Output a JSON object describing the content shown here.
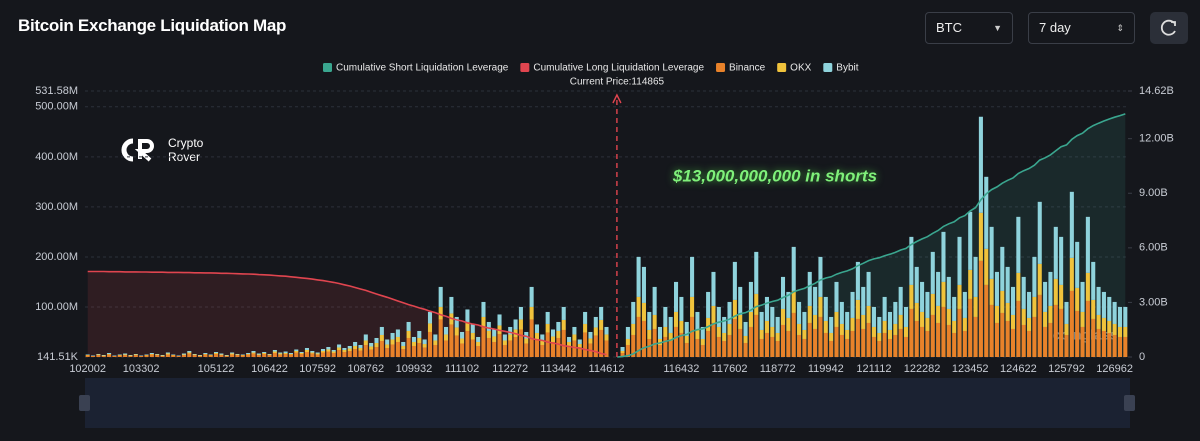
{
  "header": {
    "title": "Bitcoin Exchange Liquidation Map",
    "selectors": [
      "BTC",
      "7 day"
    ]
  },
  "logo": [
    "Crypto",
    "Rover"
  ],
  "watermark": "coinglass",
  "chart_data": {
    "type": "bar",
    "stacked": true,
    "annotation": "$13,000,000,000 in shorts",
    "current_price": {
      "value": 114865,
      "label": "Current Price:114865"
    },
    "ylim": [
      0.14151,
      531.58
    ],
    "yticks": [
      {
        "value": 0.14151,
        "label": "141.51K"
      },
      {
        "value": 100,
        "label": "100.00M"
      },
      {
        "value": 200,
        "label": "200.00M"
      },
      {
        "value": 300,
        "label": "300.00M"
      },
      {
        "value": 400,
        "label": "400.00M"
      },
      {
        "value": 500,
        "label": "500.00M"
      },
      {
        "value": 531.58,
        "label": "531.58M"
      }
    ],
    "y2lim": [
      0,
      14.62
    ],
    "y2ticks": [
      0,
      {
        "value": 3,
        "label": "3.00B"
      },
      {
        "value": 6,
        "label": "6.00B"
      },
      {
        "value": 9,
        "label": "9.00B"
      },
      {
        "value": 12,
        "label": "12.00B"
      },
      {
        "value": 14.62,
        "label": "14.62B"
      }
    ],
    "grid": true,
    "categories": [
      "102002",
      null,
      null,
      null,
      null,
      null,
      null,
      null,
      null,
      null,
      "103302",
      null,
      null,
      null,
      null,
      null,
      null,
      null,
      null,
      null,
      null,
      null,
      null,
      null,
      "105122",
      null,
      null,
      null,
      null,
      null,
      null,
      null,
      null,
      null,
      "106422",
      null,
      null,
      null,
      null,
      null,
      null,
      null,
      null,
      "107592",
      null,
      null,
      null,
      null,
      null,
      null,
      null,
      null,
      "108762",
      null,
      null,
      null,
      null,
      null,
      null,
      null,
      null,
      "109932",
      null,
      null,
      null,
      null,
      null,
      null,
      null,
      null,
      "111102",
      null,
      null,
      null,
      null,
      null,
      null,
      null,
      null,
      "112272",
      null,
      null,
      null,
      null,
      null,
      null,
      null,
      null,
      "113442",
      null,
      null,
      null,
      null,
      null,
      null,
      null,
      null,
      "114612",
      null,
      null,
      null,
      null,
      null,
      null,
      null,
      null,
      null,
      null,
      null,
      null,
      null,
      "116432",
      null,
      null,
      null,
      null,
      null,
      null,
      null,
      null,
      "117602",
      null,
      null,
      null,
      null,
      null,
      null,
      null,
      null,
      "118772",
      null,
      null,
      null,
      null,
      null,
      null,
      null,
      null,
      "119942",
      null,
      null,
      null,
      null,
      null,
      null,
      null,
      null,
      "121112",
      null,
      null,
      null,
      null,
      null,
      null,
      null,
      null,
      "122282",
      null,
      null,
      null,
      null,
      null,
      null,
      null,
      null,
      "123452",
      null,
      null,
      null,
      null,
      null,
      null,
      null,
      null,
      "124622",
      null,
      null,
      null,
      null,
      null,
      null,
      null,
      null,
      "125792",
      null,
      null,
      null,
      null,
      null,
      null,
      null,
      null,
      "126962",
      null,
      null
    ],
    "series": [
      {
        "name": "Cumulative Short Liquidation Leverage",
        "color": "#3aa68f",
        "type": "line",
        "axis": "y2",
        "values": [
          null,
          null,
          null,
          null,
          null,
          null,
          null,
          null,
          null,
          null,
          null,
          null,
          null,
          null,
          null,
          null,
          null,
          null,
          null,
          null,
          null,
          null,
          null,
          null,
          null,
          null,
          null,
          null,
          null,
          null,
          null,
          null,
          null,
          null,
          null,
          null,
          null,
          null,
          null,
          null,
          null,
          null,
          null,
          null,
          null,
          null,
          null,
          null,
          null,
          null,
          null,
          null,
          null,
          null,
          null,
          null,
          null,
          null,
          null,
          null,
          null,
          null,
          null,
          null,
          null,
          null,
          null,
          null,
          null,
          null,
          null,
          null,
          null,
          null,
          null,
          null,
          null,
          null,
          null,
          null,
          null,
          null,
          null,
          null,
          null,
          null,
          null,
          null,
          null,
          null,
          null,
          null,
          null,
          null,
          null,
          null,
          null,
          null,
          null,
          0.0,
          0.02,
          0.07,
          0.17,
          0.35,
          0.51,
          0.59,
          0.72,
          0.77,
          0.86,
          0.93,
          1.07,
          1.18,
          1.24,
          1.42,
          1.5,
          1.55,
          1.67,
          1.82,
          1.91,
          1.98,
          2.08,
          2.25,
          2.38,
          2.44,
          2.58,
          2.77,
          2.85,
          2.96,
          3.05,
          3.12,
          3.27,
          3.39,
          3.59,
          3.69,
          3.77,
          3.92,
          4.05,
          4.23,
          4.34,
          4.41,
          4.55,
          4.65,
          4.73,
          4.85,
          5.02,
          5.15,
          5.3,
          5.39,
          5.46,
          5.57,
          5.65,
          5.75,
          5.88,
          5.97,
          6.19,
          6.35,
          6.49,
          6.61,
          6.8,
          6.95,
          7.18,
          7.32,
          7.43,
          7.65,
          7.77,
          8.03,
          8.21,
          8.64,
          8.97,
          9.2,
          9.35,
          9.55,
          9.71,
          9.84,
          10.09,
          10.24,
          10.36,
          10.54,
          10.82,
          10.95,
          11.11,
          11.34,
          11.56,
          11.66,
          11.96,
          12.17,
          12.3,
          12.55,
          12.72,
          12.85,
          12.97,
          13.08,
          13.18,
          13.27,
          13.36
        ]
      },
      {
        "name": "Cumulative Long Liquidation Leverage",
        "color": "#e0454f",
        "type": "line",
        "axis": "y2",
        "values": [
          4.7,
          4.7,
          4.7,
          4.7,
          4.69,
          4.69,
          4.69,
          4.68,
          4.68,
          4.68,
          4.67,
          4.67,
          4.66,
          4.66,
          4.66,
          4.65,
          4.65,
          4.65,
          4.64,
          4.64,
          4.63,
          4.63,
          4.62,
          4.62,
          4.61,
          4.6,
          4.6,
          4.59,
          4.58,
          4.57,
          4.56,
          4.55,
          4.53,
          4.52,
          4.5,
          4.48,
          4.46,
          4.44,
          4.41,
          4.38,
          4.35,
          4.32,
          4.28,
          4.24,
          4.2,
          4.15,
          4.1,
          4.04,
          3.97,
          3.9,
          3.82,
          3.74,
          3.66,
          3.56,
          3.46,
          3.37,
          3.28,
          3.18,
          3.08,
          2.98,
          2.88,
          2.8,
          2.7,
          2.62,
          2.52,
          2.44,
          2.32,
          2.24,
          2.12,
          2.04,
          1.98,
          1.88,
          1.81,
          1.76,
          1.66,
          1.59,
          1.54,
          1.46,
          1.41,
          1.35,
          1.28,
          1.19,
          1.14,
          1.01,
          0.95,
          0.91,
          0.82,
          0.77,
          0.71,
          0.62,
          0.58,
          0.52,
          0.49,
          0.41,
          0.36,
          0.29,
          0.19,
          0.13,
          null,
          null,
          null,
          null,
          null,
          null,
          null,
          null,
          null,
          null,
          null,
          null,
          null,
          null,
          null,
          null,
          null,
          null,
          null,
          null,
          null,
          null,
          null,
          null,
          null,
          null,
          null,
          null,
          null,
          null,
          null,
          null,
          null,
          null,
          null,
          null,
          null,
          null,
          null,
          null,
          null,
          null,
          null,
          null,
          null,
          null,
          null,
          null,
          null,
          null,
          null,
          null,
          null,
          null,
          null,
          null,
          null,
          null,
          null,
          null,
          null,
          null,
          null,
          null,
          null,
          null,
          null,
          null,
          null,
          null,
          null,
          null,
          null,
          null,
          null,
          null,
          null,
          null,
          null,
          null,
          null,
          null,
          null,
          null,
          null,
          null,
          null,
          null,
          null,
          null,
          null,
          null,
          null,
          null,
          null,
          null,
          null
        ]
      },
      {
        "name": "Binance",
        "color": "#e8822a",
        "type": "bar",
        "values": [
          3,
          2,
          4,
          2,
          5,
          2,
          3,
          4,
          2,
          4,
          2,
          3,
          5,
          4,
          2,
          5,
          3,
          2,
          4,
          7,
          4,
          2,
          5,
          3,
          6,
          4,
          2,
          5,
          4,
          3,
          5,
          7,
          4,
          6,
          4,
          8,
          5,
          6,
          5,
          9,
          6,
          10,
          7,
          5,
          9,
          11,
          8,
          14,
          10,
          12,
          16,
          13,
          24,
          15,
          20,
          32,
          18,
          25,
          30,
          16,
          38,
          22,
          28,
          19,
          50,
          24,
          75,
          33,
          65,
          43,
          27,
          52,
          35,
          22,
          60,
          38,
          30,
          46,
          24,
          33,
          40,
          55,
          27,
          75,
          35,
          24,
          49,
          30,
          38,
          54,
          22,
          33,
          19,
          49,
          27,
          43,
          54,
          33,
          0,
          0,
          8,
          24,
          44,
          80,
          72,
          36,
          56,
          24,
          40,
          32,
          60,
          48,
          28,
          80,
          36,
          24,
          52,
          68,
          40,
          32,
          44,
          76,
          56,
          28,
          60,
          84,
          36,
          48,
          40,
          32,
          64,
          52,
          88,
          44,
          36,
          68,
          56,
          80,
          48,
          32,
          60,
          44,
          36,
          52,
          76,
          56,
          68,
          40,
          32,
          48,
          36,
          44,
          56,
          40,
          96,
          72,
          60,
          52,
          84,
          68,
          100,
          64,
          48,
          96,
          52,
          116,
          80,
          192,
          144,
          104,
          68,
          88,
          72,
          56,
          112,
          64,
          52,
          80,
          124,
          60,
          68,
          104,
          96,
          44,
          132,
          92,
          60,
          112,
          76,
          56,
          52,
          48,
          44,
          40,
          40
        ]
      },
      {
        "name": "OKX",
        "color": "#f0c33c",
        "type": "bar",
        "values": [
          1,
          0,
          1,
          1,
          1,
          0,
          1,
          1,
          1,
          1,
          0,
          1,
          1,
          1,
          1,
          2,
          1,
          0,
          1,
          2,
          1,
          1,
          1,
          1,
          2,
          1,
          1,
          2,
          1,
          1,
          1,
          2,
          1,
          2,
          1,
          3,
          2,
          2,
          1,
          3,
          2,
          4,
          2,
          2,
          3,
          4,
          3,
          5,
          4,
          5,
          6,
          5,
          9,
          6,
          8,
          12,
          7,
          10,
          10,
          6,
          14,
          8,
          10,
          7,
          17,
          9,
          25,
          12,
          22,
          16,
          10,
          18,
          13,
          8,
          20,
          14,
          11,
          17,
          9,
          12,
          15,
          20,
          10,
          25,
          13,
          9,
          17,
          11,
          14,
          20,
          8,
          12,
          7,
          17,
          10,
          16,
          20,
          12,
          0,
          0,
          4,
          12,
          22,
          40,
          36,
          18,
          28,
          12,
          20,
          16,
          30,
          24,
          14,
          40,
          18,
          12,
          26,
          34,
          20,
          16,
          22,
          38,
          28,
          14,
          30,
          42,
          18,
          24,
          20,
          16,
          32,
          26,
          44,
          22,
          18,
          34,
          28,
          40,
          24,
          16,
          30,
          22,
          18,
          26,
          38,
          28,
          34,
          20,
          16,
          24,
          18,
          22,
          28,
          20,
          48,
          36,
          30,
          26,
          42,
          34,
          50,
          32,
          24,
          48,
          26,
          58,
          40,
          96,
          72,
          52,
          34,
          44,
          36,
          28,
          56,
          32,
          26,
          40,
          62,
          30,
          34,
          52,
          48,
          22,
          66,
          46,
          30,
          56,
          38,
          28,
          26,
          24,
          22,
          20,
          20
        ]
      },
      {
        "name": "Bybit",
        "color": "#8fd3dc",
        "type": "bar",
        "values": [
          1,
          1,
          1,
          1,
          2,
          1,
          1,
          2,
          1,
          1,
          1,
          1,
          2,
          1,
          1,
          2,
          1,
          1,
          2,
          3,
          1,
          1,
          2,
          1,
          2,
          2,
          1,
          2,
          1,
          1,
          2,
          3,
          2,
          2,
          1,
          3,
          2,
          3,
          2,
          3,
          2,
          4,
          3,
          2,
          4,
          5,
          3,
          6,
          4,
          5,
          8,
          6,
          12,
          7,
          10,
          16,
          10,
          13,
          15,
          8,
          18,
          10,
          14,
          9,
          23,
          12,
          40,
          15,
          33,
          21,
          13,
          25,
          17,
          10,
          30,
          18,
          14,
          22,
          12,
          15,
          20,
          25,
          13,
          40,
          17,
          12,
          24,
          14,
          18,
          26,
          10,
          15,
          9,
          24,
          13,
          21,
          26,
          15,
          0,
          0,
          8,
          24,
          44,
          80,
          72,
          36,
          56,
          24,
          40,
          32,
          60,
          48,
          28,
          80,
          36,
          24,
          52,
          68,
          40,
          32,
          44,
          76,
          56,
          28,
          60,
          84,
          36,
          48,
          40,
          32,
          64,
          52,
          88,
          44,
          36,
          68,
          56,
          80,
          48,
          32,
          60,
          44,
          36,
          52,
          76,
          56,
          68,
          40,
          32,
          48,
          36,
          44,
          56,
          40,
          96,
          72,
          60,
          52,
          84,
          68,
          100,
          64,
          48,
          96,
          52,
          116,
          80,
          192,
          144,
          104,
          68,
          88,
          72,
          56,
          112,
          64,
          52,
          80,
          124,
          60,
          68,
          104,
          96,
          44,
          132,
          92,
          60,
          112,
          76,
          56,
          52,
          48,
          44,
          40,
          40
        ]
      }
    ]
  }
}
